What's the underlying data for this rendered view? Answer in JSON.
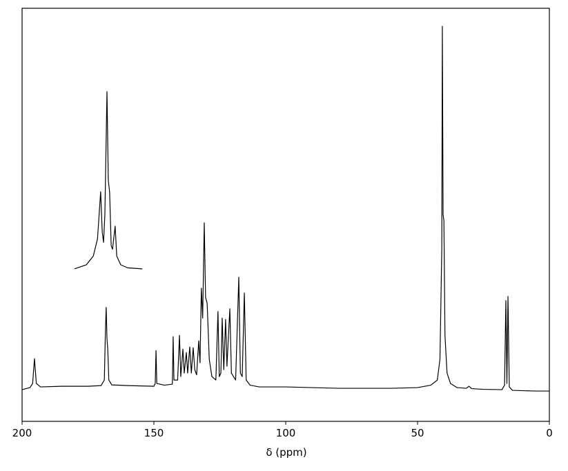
{
  "chart_data": {
    "type": "line",
    "x_label": "δ (ppm)",
    "xlim": [
      200,
      0
    ],
    "xticks": [
      200,
      150,
      100,
      50,
      0
    ],
    "ylim": [
      0,
      120
    ],
    "series": [
      {
        "color": "#000000",
        "x": [
          200,
          197,
          196,
          195.3,
          194.6,
          193,
          185,
          175,
          170,
          168.8,
          168.4,
          168.1,
          167.8,
          167.5,
          167.1,
          166,
          160,
          150,
          149.5,
          149.2,
          148.9,
          146,
          143,
          142.7,
          142.4,
          141,
          140.3,
          139.8,
          139,
          138.5,
          137.7,
          137.2,
          136.4,
          135.8,
          135.1,
          134.5,
          133.8,
          133,
          132.5,
          132,
          131.5,
          130.9,
          130.4,
          129.8,
          129,
          128,
          126.5,
          125.7,
          125.2,
          124.6,
          124.1,
          123.5,
          122.8,
          122.3,
          121.2,
          120.6,
          119,
          117.8,
          117.2,
          116.5,
          115.7,
          115,
          113.5,
          110,
          100,
          90,
          80,
          70,
          60,
          50,
          45,
          42.5,
          41.5,
          40.8,
          40.6,
          40.3,
          40,
          39.6,
          38.8,
          37.5,
          35,
          31.5,
          30.5,
          29.5,
          25,
          18,
          17,
          16.5,
          16.1,
          15.7,
          15.2,
          14,
          5,
          0
        ],
        "values": [
          9.2,
          9.8,
          11,
          18.2,
          11,
          10,
          10.2,
          10.2,
          10.4,
          12,
          26,
          33.1,
          24,
          21,
          12,
          10.6,
          10.4,
          10.2,
          11,
          20.6,
          11,
          10.5,
          10.8,
          24.6,
          12,
          12,
          25,
          13,
          21,
          14,
          20,
          14,
          21.6,
          14,
          21.4,
          15,
          13.5,
          23.4,
          17,
          38.7,
          30,
          57.7,
          36,
          34.3,
          18,
          13,
          12,
          31.9,
          13,
          14,
          30,
          15,
          29.6,
          16,
          32.7,
          14,
          12,
          41.9,
          14,
          13,
          37.3,
          12,
          10.5,
          10,
          10,
          9.8,
          9.6,
          9.6,
          9.6,
          9.8,
          10.5,
          12,
          18,
          50,
          114.8,
          60,
          58.3,
          25,
          14,
          11,
          9.8,
          9.6,
          10.2,
          9.5,
          9.3,
          9.2,
          10.5,
          35.1,
          11,
          36.3,
          10,
          9,
          8.8,
          8.8
        ]
      },
      {
        "color": "#000000",
        "x": [
          180.1,
          175.6,
          173,
          171.4,
          170.2,
          169.6,
          169.1,
          168.6,
          167.8,
          167.3,
          166.8,
          166.2,
          165.7,
          164.7,
          164.1,
          162.6,
          160,
          154.4
        ],
        "values": [
          44.3,
          45.5,
          48,
          53,
          66.7,
          55,
          52,
          60,
          95.8,
          70,
          66.7,
          51,
          50,
          56.7,
          48,
          45.5,
          44.6,
          44.3
        ]
      }
    ]
  }
}
